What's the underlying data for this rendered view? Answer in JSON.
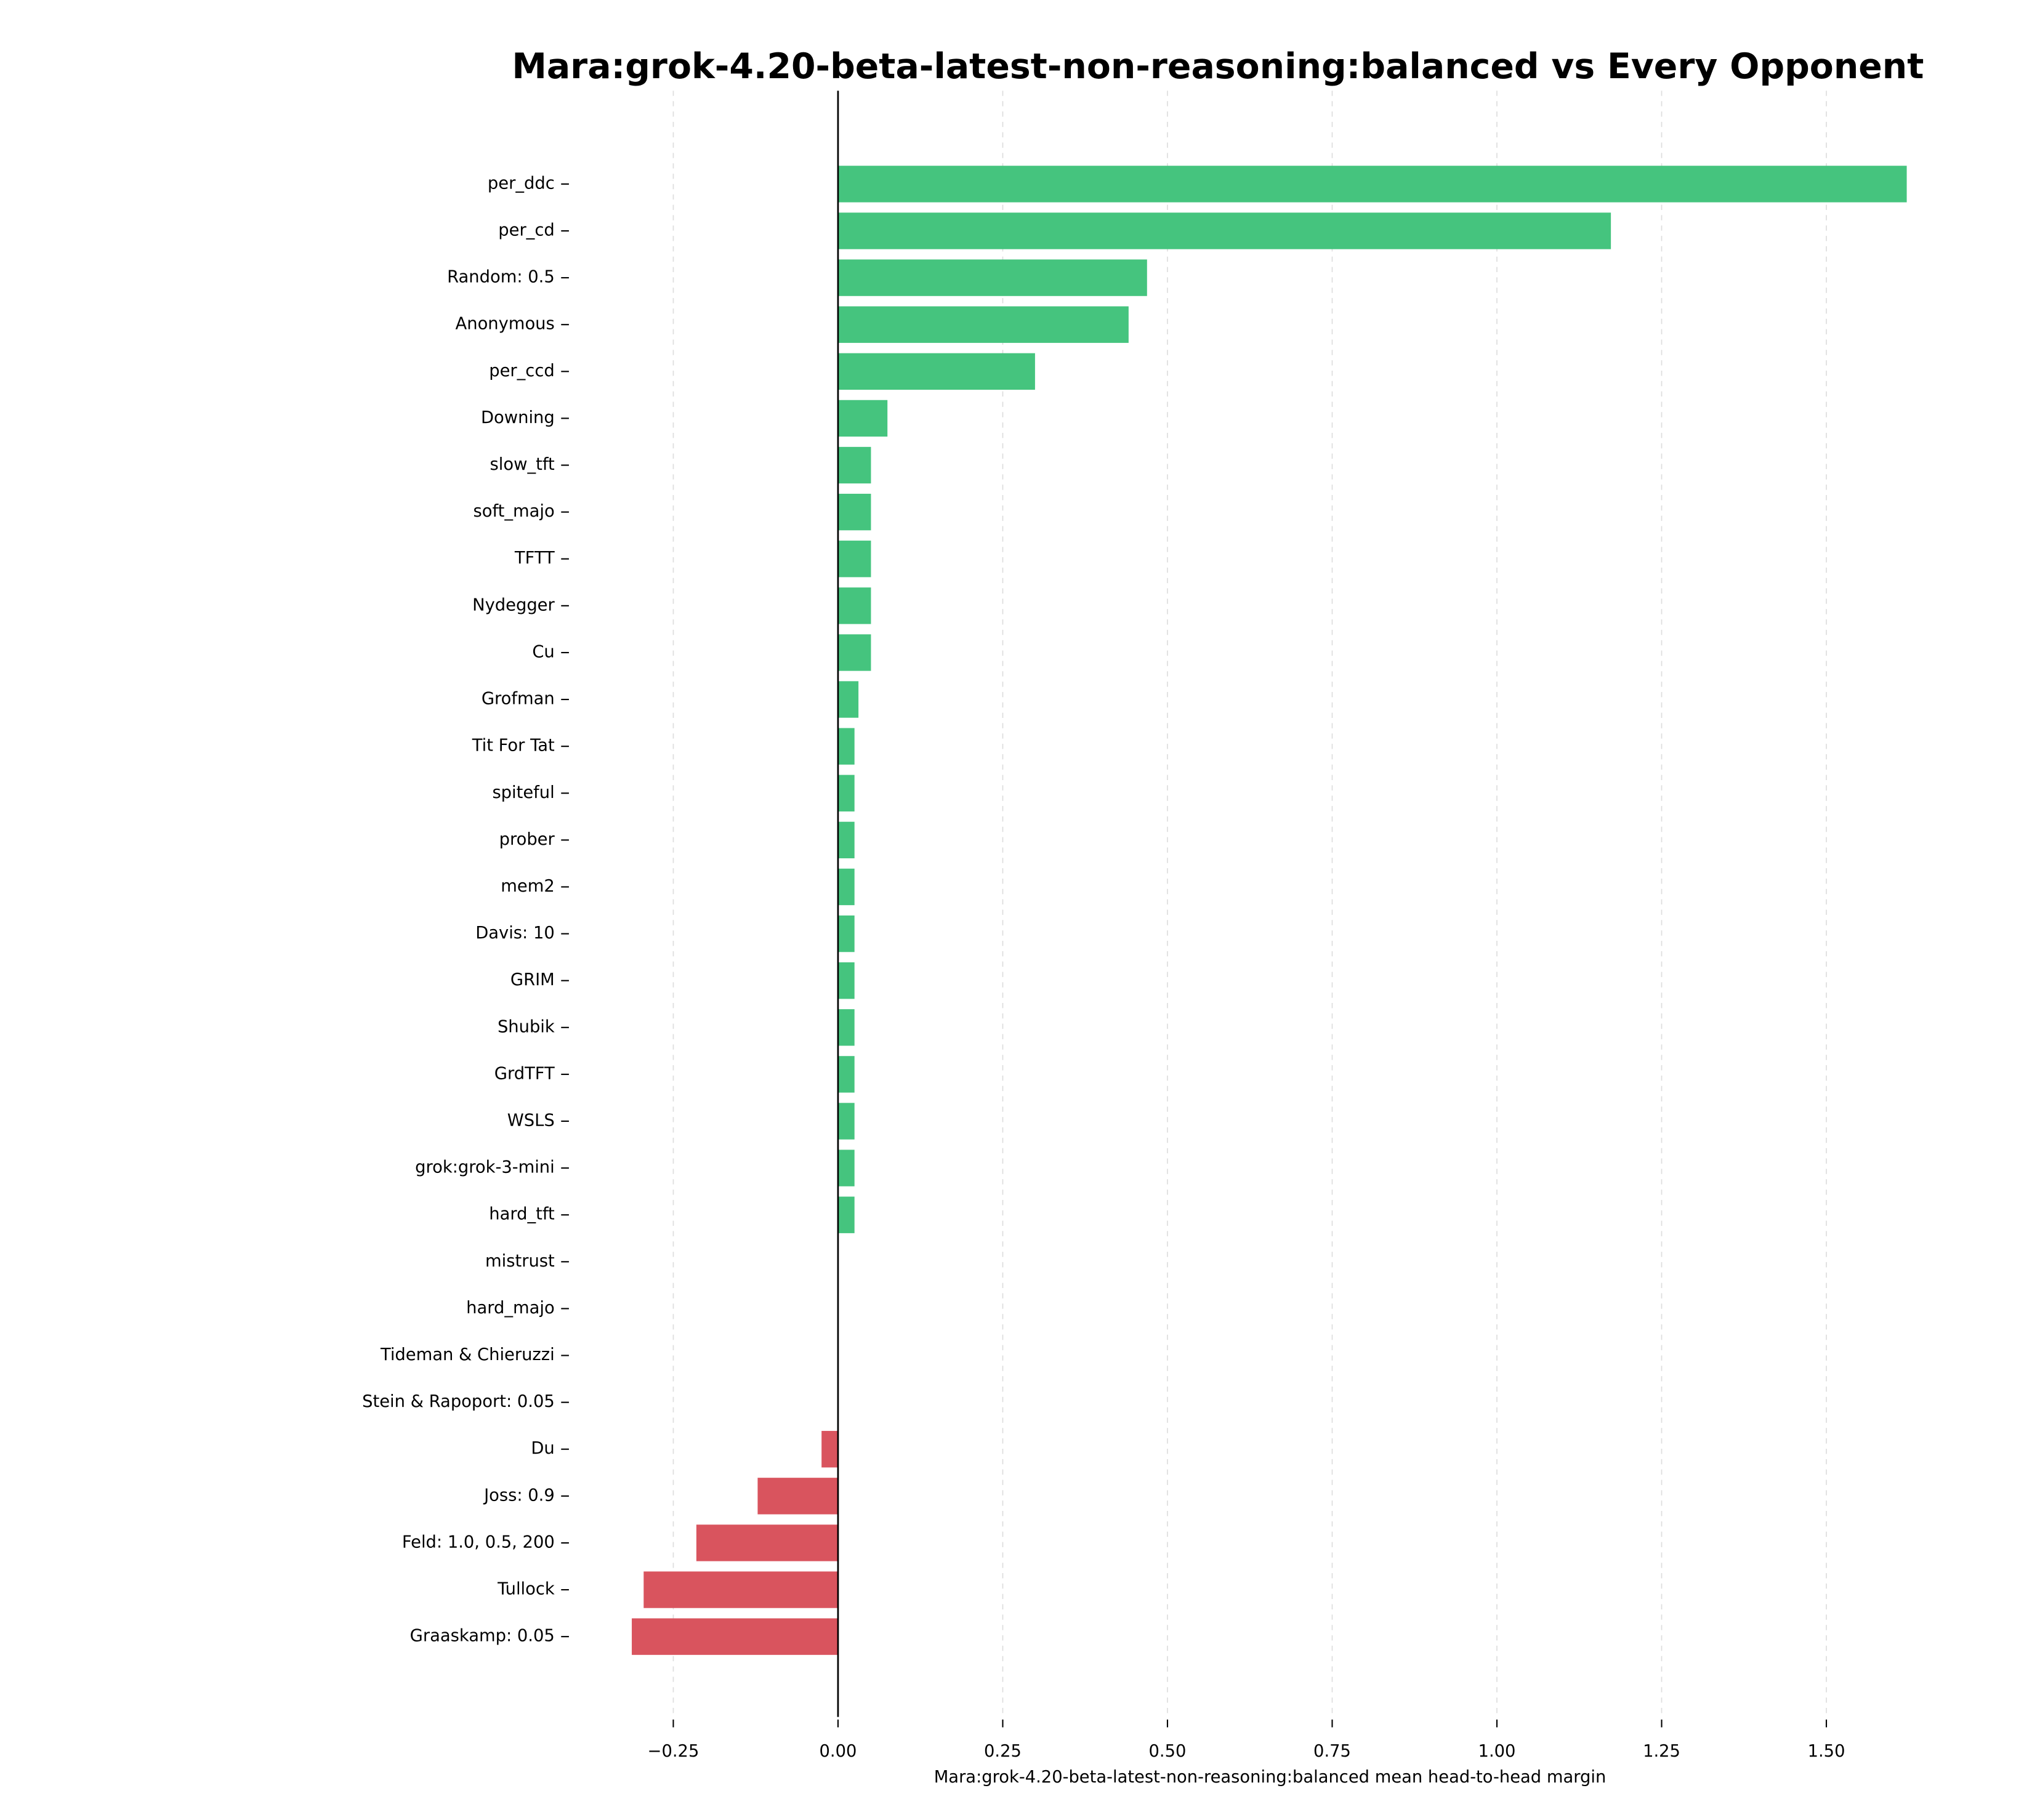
{
  "chart_data": {
    "type": "barh",
    "title": "Mara:grok-4.20-beta-latest-non-reasoning:balanced vs Every Opponent",
    "x_label": "Mara:grok-4.20-beta-latest-non-reasoning:balanced mean head-to-head margin",
    "categories": [
      "per_ddc",
      "per_cd",
      "Random: 0.5",
      "Anonymous",
      "per_ccd",
      "Downing",
      "slow_tft",
      "soft_majo",
      "TFTT",
      "Nydegger",
      "Cu",
      "Grofman",
      "Tit For Tat",
      "spiteful",
      "prober",
      "mem2",
      "Davis: 10",
      "GRIM",
      "Shubik",
      "GrdTFT",
      "WSLS",
      "grok:grok-3-mini",
      "hard_tft",
      "mistrust",
      "hard_majo",
      "Tideman & Chieruzzi",
      "Stein & Rapoport: 0.05",
      "Du",
      "Joss: 0.9",
      "Feld: 1.0, 0.5, 200",
      "Tullock",
      "Graaskamp: 0.05"
    ],
    "values": [
      1.622,
      1.173,
      0.469,
      0.441,
      0.299,
      0.075,
      0.05,
      0.05,
      0.05,
      0.05,
      0.05,
      0.031,
      0.025,
      0.025,
      0.025,
      0.025,
      0.025,
      0.025,
      0.025,
      0.025,
      0.025,
      0.025,
      0.025,
      0,
      0,
      0,
      0,
      -0.025,
      -0.122,
      -0.215,
      -0.295,
      -0.313
    ],
    "positive_color": "#45c47e",
    "negative_color": "#d9545e",
    "xlim": [
      -0.375,
      1.7
    ],
    "xticks": [
      {
        "value": -0.25,
        "label": "−0.25"
      },
      {
        "value": 0,
        "label": "0.00"
      },
      {
        "value": 0.25,
        "label": "0.25"
      },
      {
        "value": 0.5,
        "label": "0.50"
      },
      {
        "value": 0.75,
        "label": "0.75"
      },
      {
        "value": 1,
        "label": "1.00"
      },
      {
        "value": 1.25,
        "label": "1.25"
      },
      {
        "value": 1.5,
        "label": "1.50"
      }
    ],
    "grid": true
  }
}
